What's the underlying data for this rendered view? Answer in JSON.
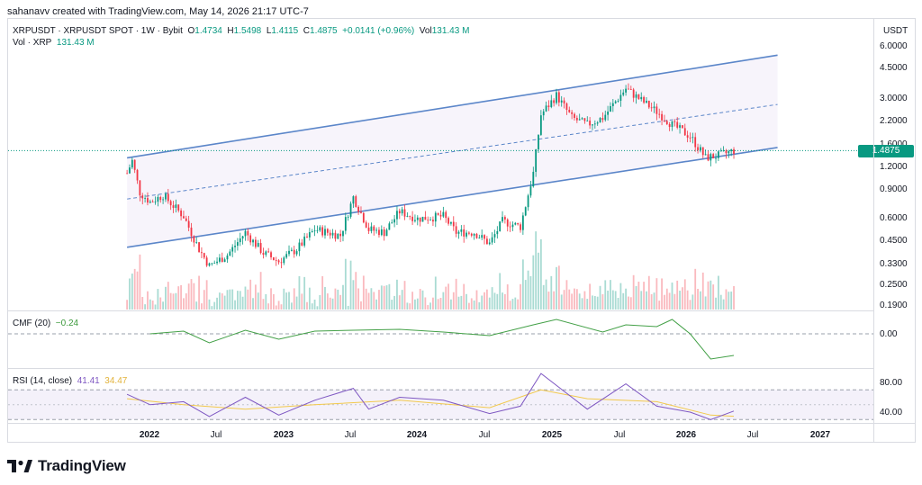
{
  "header": {
    "credit": "sahanavv created with TradingView.com, May 14, 2026 21:17 UTC-7"
  },
  "legend": {
    "symbol": "XRPUSDT · XRPUSDT SPOT · 1W · Bybit",
    "open_label": "O",
    "open": "1.4734",
    "high_label": "H",
    "high": "1.5498",
    "low_label": "L",
    "low": "1.4115",
    "close_label": "C",
    "close": "1.4875",
    "change": "+0.0141 (+0.96%)",
    "vol_label": "Vol",
    "vol": "131.43 M"
  },
  "volume_legend": {
    "label": "Vol · XRP",
    "value": "131.43 M"
  },
  "cmf_legend": {
    "label": "CMF (20)",
    "value": "−0.24"
  },
  "rsi_legend": {
    "label": "RSI (14, close)",
    "value": "41.41",
    "ma_value": "34.47"
  },
  "price_axis": {
    "unit": "USDT",
    "ticks": [
      "6.0000",
      "4.5000",
      "3.0000",
      "2.2000",
      "1.6000",
      "1.2000",
      "0.9000",
      "0.6000",
      "0.4500",
      "0.3300",
      "0.2500",
      "0.1900"
    ]
  },
  "last_price_badge": "1.4875",
  "cmf_axis": {
    "ticks": [
      "0.00"
    ]
  },
  "rsi_axis": {
    "ticks": [
      "80.00",
      "40.00"
    ]
  },
  "time_axis": {
    "ticks": [
      {
        "label": "2022",
        "year": true
      },
      {
        "label": "Jul",
        "year": false
      },
      {
        "label": "2023",
        "year": true
      },
      {
        "label": "Jul",
        "year": false
      },
      {
        "label": "2024",
        "year": true
      },
      {
        "label": "Jul",
        "year": false
      },
      {
        "label": "2025",
        "year": true
      },
      {
        "label": "Jul",
        "year": false
      },
      {
        "label": "2026",
        "year": true
      },
      {
        "label": "Jul",
        "year": false
      },
      {
        "label": "2027",
        "year": true
      }
    ]
  },
  "brand": {
    "name": "TradingView"
  },
  "colors": {
    "up": "#089981",
    "down": "#f23645",
    "channel": "#5b86c9",
    "cmf": "#43a047",
    "rsi": "#7e57c2",
    "rsi_ma": "#f2c94c"
  },
  "chart_data": {
    "type": "candlestick",
    "interval": "1W",
    "scale": "log",
    "ylim": [
      0.19,
      6.0
    ],
    "closes": [
      {
        "date": "2021-11-01",
        "close": 1.1
      },
      {
        "date": "2021-11-15",
        "close": 1.3
      },
      {
        "date": "2021-12-06",
        "close": 0.85
      },
      {
        "date": "2022-01-03",
        "close": 0.75
      },
      {
        "date": "2022-02-07",
        "close": 0.82
      },
      {
        "date": "2022-04-04",
        "close": 0.62
      },
      {
        "date": "2022-05-16",
        "close": 0.4
      },
      {
        "date": "2022-06-13",
        "close": 0.32
      },
      {
        "date": "2022-08-01",
        "close": 0.37
      },
      {
        "date": "2022-09-19",
        "close": 0.5
      },
      {
        "date": "2022-11-07",
        "close": 0.38
      },
      {
        "date": "2022-12-19",
        "close": 0.34
      },
      {
        "date": "2023-02-06",
        "close": 0.4
      },
      {
        "date": "2023-03-27",
        "close": 0.52
      },
      {
        "date": "2023-06-05",
        "close": 0.48
      },
      {
        "date": "2023-07-10",
        "close": 0.8
      },
      {
        "date": "2023-08-21",
        "close": 0.52
      },
      {
        "date": "2023-10-02",
        "close": 0.5
      },
      {
        "date": "2023-11-13",
        "close": 0.66
      },
      {
        "date": "2024-01-01",
        "close": 0.6
      },
      {
        "date": "2024-03-11",
        "close": 0.62
      },
      {
        "date": "2024-04-15",
        "close": 0.5
      },
      {
        "date": "2024-06-03",
        "close": 0.5
      },
      {
        "date": "2024-07-15",
        "close": 0.43
      },
      {
        "date": "2024-08-19",
        "close": 0.58
      },
      {
        "date": "2024-10-07",
        "close": 0.54
      },
      {
        "date": "2024-11-11",
        "close": 1.1
      },
      {
        "date": "2024-12-02",
        "close": 2.4
      },
      {
        "date": "2025-01-13",
        "close": 3.1
      },
      {
        "date": "2025-02-24",
        "close": 2.3
      },
      {
        "date": "2025-04-07",
        "close": 2.1
      },
      {
        "date": "2025-05-19",
        "close": 2.3
      },
      {
        "date": "2025-07-21",
        "close": 3.4
      },
      {
        "date": "2025-09-01",
        "close": 2.9
      },
      {
        "date": "2025-10-13",
        "close": 2.5
      },
      {
        "date": "2025-11-24",
        "close": 2.1
      },
      {
        "date": "2026-01-12",
        "close": 1.8
      },
      {
        "date": "2026-02-23",
        "close": 1.35
      },
      {
        "date": "2026-04-06",
        "close": 1.4
      },
      {
        "date": "2026-05-11",
        "close": 1.4875
      }
    ],
    "channel": {
      "upper": [
        {
          "date": "2021-11-01",
          "price": 1.35
        },
        {
          "date": "2026-09-07",
          "price": 5.3
        }
      ],
      "middle": [
        {
          "date": "2021-11-01",
          "price": 0.78
        },
        {
          "date": "2026-09-07",
          "price": 2.75
        }
      ],
      "lower": [
        {
          "date": "2021-11-01",
          "price": 0.41
        },
        {
          "date": "2026-09-07",
          "price": 1.55
        }
      ]
    },
    "cmf": {
      "name": "CMF (20)",
      "points": [
        {
          "date": "2022-01-03",
          "value": 0.0
        },
        {
          "date": "2022-04-04",
          "value": 0.03
        },
        {
          "date": "2022-06-13",
          "value": -0.1
        },
        {
          "date": "2022-09-19",
          "value": 0.04
        },
        {
          "date": "2022-12-19",
          "value": -0.06
        },
        {
          "date": "2023-03-27",
          "value": 0.03
        },
        {
          "date": "2023-07-10",
          "value": 0.04
        },
        {
          "date": "2023-11-13",
          "value": 0.05
        },
        {
          "date": "2024-03-11",
          "value": 0.02
        },
        {
          "date": "2024-07-15",
          "value": -0.02
        },
        {
          "date": "2024-11-11",
          "value": 0.1
        },
        {
          "date": "2025-01-13",
          "value": 0.16
        },
        {
          "date": "2025-05-19",
          "value": 0.02
        },
        {
          "date": "2025-07-21",
          "value": 0.1
        },
        {
          "date": "2025-10-13",
          "value": 0.08
        },
        {
          "date": "2025-11-24",
          "value": 0.16
        },
        {
          "date": "2026-01-12",
          "value": 0.0
        },
        {
          "date": "2026-03-09",
          "value": -0.28
        },
        {
          "date": "2026-05-11",
          "value": -0.24
        }
      ]
    },
    "rsi": {
      "name": "RSI (14, close)",
      "ylim": [
        28,
        92
      ],
      "points": [
        {
          "date": "2021-11-01",
          "value": 64
        },
        {
          "date": "2022-01-03",
          "value": 50
        },
        {
          "date": "2022-04-04",
          "value": 54
        },
        {
          "date": "2022-06-13",
          "value": 34
        },
        {
          "date": "2022-09-19",
          "value": 60
        },
        {
          "date": "2022-12-19",
          "value": 36
        },
        {
          "date": "2023-03-27",
          "value": 56
        },
        {
          "date": "2023-07-10",
          "value": 72
        },
        {
          "date": "2023-08-21",
          "value": 44
        },
        {
          "date": "2023-11-13",
          "value": 60
        },
        {
          "date": "2024-03-11",
          "value": 56
        },
        {
          "date": "2024-07-15",
          "value": 38
        },
        {
          "date": "2024-10-07",
          "value": 48
        },
        {
          "date": "2024-12-02",
          "value": 92
        },
        {
          "date": "2025-02-24",
          "value": 60
        },
        {
          "date": "2025-04-07",
          "value": 44
        },
        {
          "date": "2025-07-21",
          "value": 78
        },
        {
          "date": "2025-10-13",
          "value": 48
        },
        {
          "date": "2026-01-12",
          "value": 40
        },
        {
          "date": "2026-03-09",
          "value": 30
        },
        {
          "date": "2026-05-11",
          "value": 41.41
        }
      ],
      "ma": [
        {
          "date": "2021-11-01",
          "value": 58
        },
        {
          "date": "2022-04-04",
          "value": 50
        },
        {
          "date": "2022-09-19",
          "value": 44
        },
        {
          "date": "2023-03-27",
          "value": 50
        },
        {
          "date": "2023-11-13",
          "value": 56
        },
        {
          "date": "2024-07-15",
          "value": 46
        },
        {
          "date": "2024-12-02",
          "value": 70
        },
        {
          "date": "2025-04-07",
          "value": 58
        },
        {
          "date": "2025-10-13",
          "value": 54
        },
        {
          "date": "2026-03-09",
          "value": 36
        },
        {
          "date": "2026-05-11",
          "value": 34.47
        }
      ]
    }
  }
}
